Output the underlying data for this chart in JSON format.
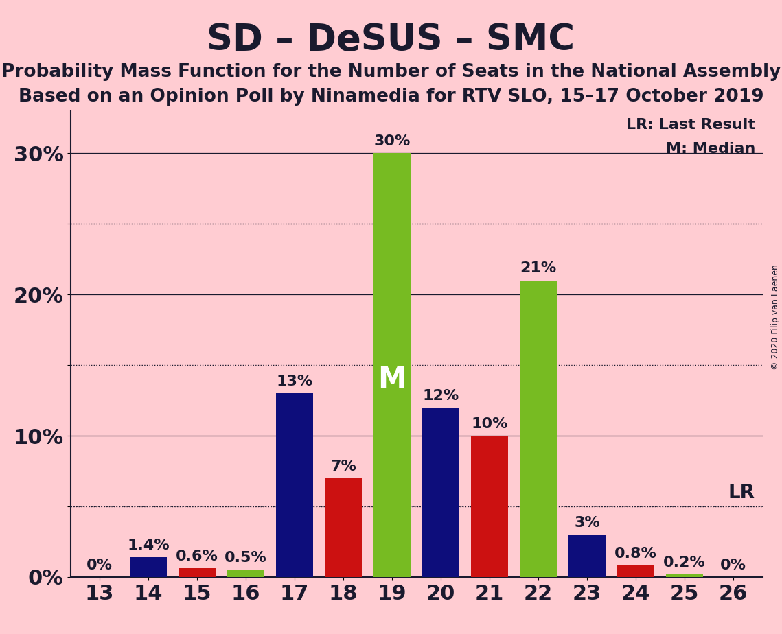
{
  "title": "SD – DeSUS – SMC",
  "subtitle1": "Probability Mass Function for the Number of Seats in the National Assembly",
  "subtitle2": "Based on an Opinion Poll by Ninamedia for RTV SLO, 15–17 October 2019",
  "copyright": "© 2020 Filip van Laenen",
  "background_color": "#FFCCD2",
  "categories": [
    13,
    14,
    15,
    16,
    17,
    18,
    19,
    20,
    21,
    22,
    23,
    24,
    25,
    26
  ],
  "values": [
    0.0,
    1.4,
    0.6,
    0.5,
    13.0,
    7.0,
    30.0,
    12.0,
    10.0,
    21.0,
    3.0,
    0.8,
    0.2,
    0.0
  ],
  "colors": [
    "#0D0D7B",
    "#0D0D7B",
    "#CC1111",
    "#77BB22",
    "#0D0D7B",
    "#CC1111",
    "#77BB22",
    "#0D0D7B",
    "#CC1111",
    "#77BB22",
    "#0D0D7B",
    "#CC1111",
    "#77BB22",
    "#0D0D7B"
  ],
  "bar_width": 0.75,
  "yticks": [
    0,
    5,
    10,
    15,
    20,
    25,
    30
  ],
  "ytick_labels": [
    "0%",
    "",
    "10%",
    "",
    "20%",
    "",
    "30%"
  ],
  "ylim": [
    0,
    33
  ],
  "lr_value": 5.0,
  "median_seat": 19,
  "median_idx": 6,
  "title_fontsize": 38,
  "subtitle_fontsize": 19,
  "axis_fontsize": 22,
  "label_fontsize": 16,
  "lr_label_fontsize": 20,
  "legend_fontsize": 16,
  "copyright_fontsize": 9,
  "dark_color": "#1a1a2e"
}
